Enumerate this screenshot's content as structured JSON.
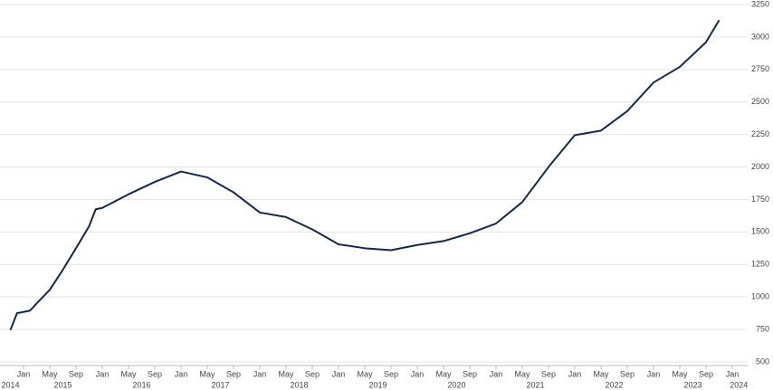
{
  "chart_data": {
    "type": "line",
    "x": [
      "2014-11",
      "2014-12",
      "2015-02",
      "2015-03",
      "2015-05",
      "2015-07",
      "2015-09",
      "2015-11",
      "2015-12",
      "2016-01",
      "2016-05",
      "2016-09",
      "2017-01",
      "2017-05",
      "2017-09",
      "2018-01",
      "2018-05",
      "2018-09",
      "2019-01",
      "2019-05",
      "2019-09",
      "2020-01",
      "2020-05",
      "2020-09",
      "2021-01",
      "2021-05",
      "2021-09",
      "2022-01",
      "2022-05",
      "2022-09",
      "2023-01",
      "2023-05",
      "2023-09",
      "2023-11"
    ],
    "series": [
      {
        "color": "#14284b",
        "values": [
          745,
          875,
          895,
          950,
          1055,
          1210,
          1375,
          1545,
          1675,
          1685,
          1790,
          1885,
          1965,
          1920,
          1805,
          1650,
          1615,
          1520,
          1405,
          1375,
          1360,
          1400,
          1430,
          1490,
          1565,
          1730,
          2000,
          2245,
          2280,
          2430,
          2650,
          2770,
          2960,
          3130
        ]
      }
    ],
    "xlim": [
      "2014-10",
      "2024-03"
    ],
    "xticks": [
      {
        "value": "2015-01",
        "label": "Jan"
      },
      {
        "value": "2015-05",
        "label": "May"
      },
      {
        "value": "2015-09",
        "label": "Sep"
      },
      {
        "value": "2016-01",
        "label": "Jan"
      },
      {
        "value": "2016-05",
        "label": "May"
      },
      {
        "value": "2016-09",
        "label": "Sep"
      },
      {
        "value": "2017-01",
        "label": "Jan"
      },
      {
        "value": "2017-05",
        "label": "May"
      },
      {
        "value": "2017-09",
        "label": "Sep"
      },
      {
        "value": "2018-01",
        "label": "Jan"
      },
      {
        "value": "2018-05",
        "label": "May"
      },
      {
        "value": "2018-09",
        "label": "Sep"
      },
      {
        "value": "2019-01",
        "label": "Jan"
      },
      {
        "value": "2019-05",
        "label": "May"
      },
      {
        "value": "2019-09",
        "label": "Sep"
      },
      {
        "value": "2020-01",
        "label": "Jan"
      },
      {
        "value": "2020-05",
        "label": "May"
      },
      {
        "value": "2020-09",
        "label": "Sep"
      },
      {
        "value": "2021-01",
        "label": "Jan"
      },
      {
        "value": "2021-05",
        "label": "May"
      },
      {
        "value": "2021-09",
        "label": "Sep"
      },
      {
        "value": "2022-01",
        "label": "Jan"
      },
      {
        "value": "2022-05",
        "label": "May"
      },
      {
        "value": "2022-09",
        "label": "Sep"
      },
      {
        "value": "2023-01",
        "label": "Jan"
      },
      {
        "value": "2023-05",
        "label": "May"
      },
      {
        "value": "2023-09",
        "label": "Sep"
      },
      {
        "value": "2024-01",
        "label": "Jan"
      }
    ],
    "x_year_labels": [
      {
        "value": "2014-11",
        "label": "2014"
      },
      {
        "value": "2015-07",
        "label": "2015"
      },
      {
        "value": "2016-07",
        "label": "2016"
      },
      {
        "value": "2017-07",
        "label": "2017"
      },
      {
        "value": "2018-07",
        "label": "2018"
      },
      {
        "value": "2019-07",
        "label": "2019"
      },
      {
        "value": "2020-07",
        "label": "2020"
      },
      {
        "value": "2021-07",
        "label": "2021"
      },
      {
        "value": "2022-07",
        "label": "2022"
      },
      {
        "value": "2023-07",
        "label": "2023"
      },
      {
        "value": "2024-02",
        "label": "2024"
      }
    ],
    "ylim": [
      500,
      3250
    ],
    "yticks": [
      500,
      750,
      1000,
      1250,
      1500,
      1750,
      2000,
      2250,
      2500,
      2750,
      3000,
      3250
    ],
    "grid": true
  }
}
